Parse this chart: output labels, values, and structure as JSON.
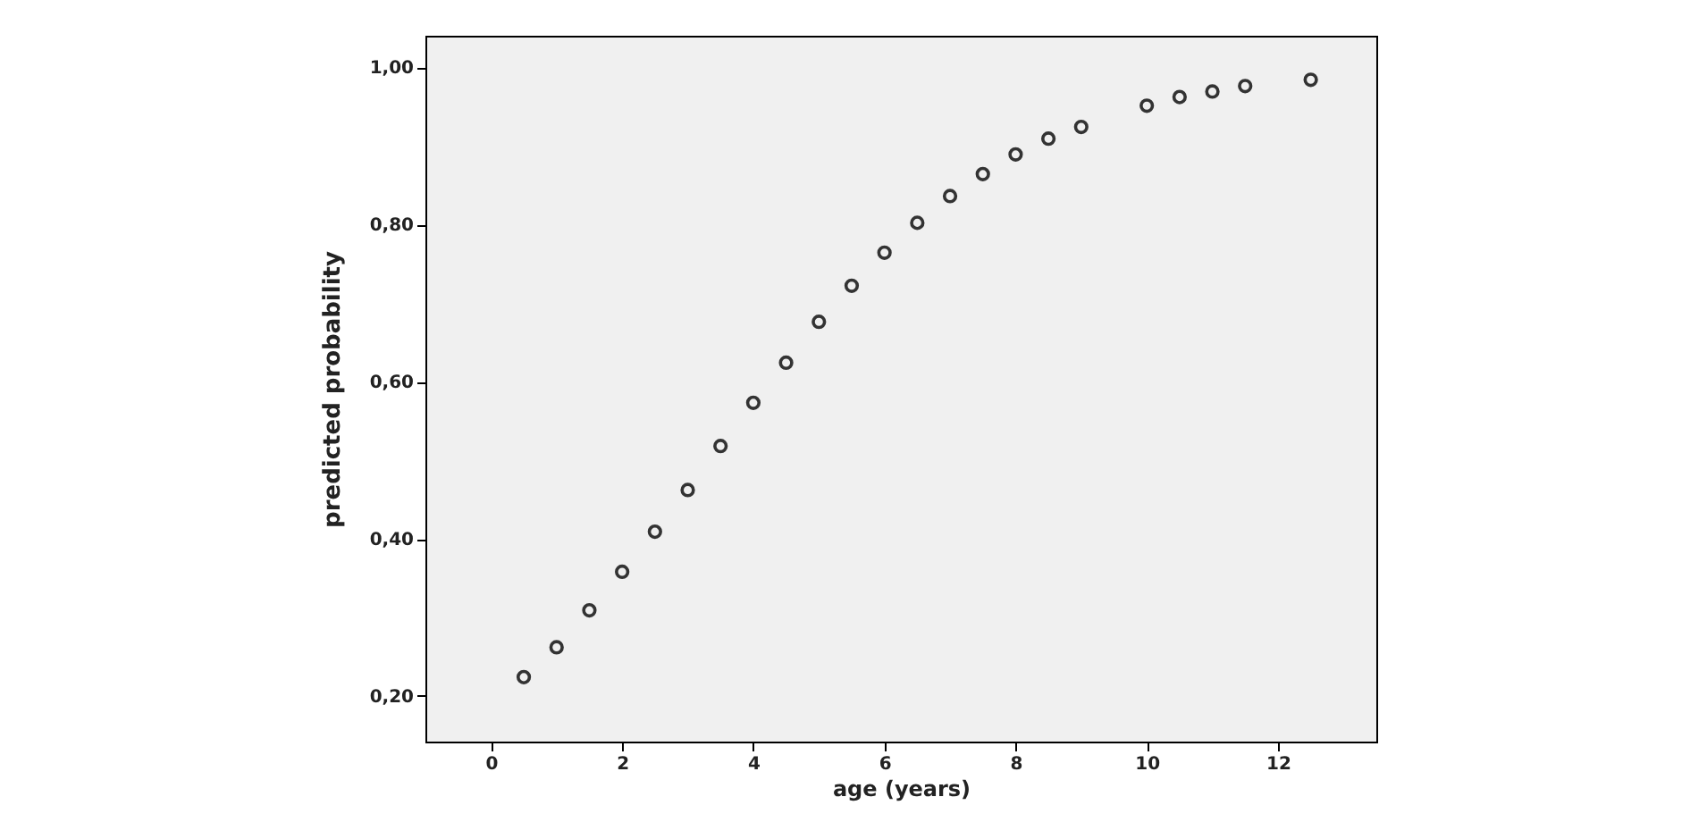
{
  "chart_data": {
    "type": "scatter",
    "xlabel": "age (years)",
    "ylabel": "predicted probability",
    "x": [
      0.5,
      1,
      1.5,
      2,
      2.5,
      3,
      3.5,
      4,
      4.5,
      5,
      5.5,
      6,
      6.5,
      7,
      7.5,
      8,
      8.5,
      9,
      10,
      10.5,
      11,
      11.5,
      12.5
    ],
    "series": [
      {
        "color": "#333333",
        "values": [
          0.224,
          0.262,
          0.309,
          0.358,
          0.409,
          0.462,
          0.518,
          0.573,
          0.624,
          0.676,
          0.722,
          0.764,
          0.802,
          0.836,
          0.864,
          0.889,
          0.909,
          0.924,
          0.951,
          0.962,
          0.969,
          0.976,
          0.984
        ]
      }
    ],
    "xlim": [
      -1,
      13.5
    ],
    "xticks": [
      0,
      2,
      4,
      6,
      8,
      10,
      12
    ],
    "ylim": [
      0.142,
      1.04
    ],
    "yticks": [
      {
        "value": 0.2,
        "label": "0,20"
      },
      {
        "value": 0.4,
        "label": "0,40"
      },
      {
        "value": 0.6,
        "label": "0,60"
      },
      {
        "value": 0.8,
        "label": "0,80"
      },
      {
        "value": 1,
        "label": "1,00"
      }
    ],
    "marker": "circle"
  }
}
